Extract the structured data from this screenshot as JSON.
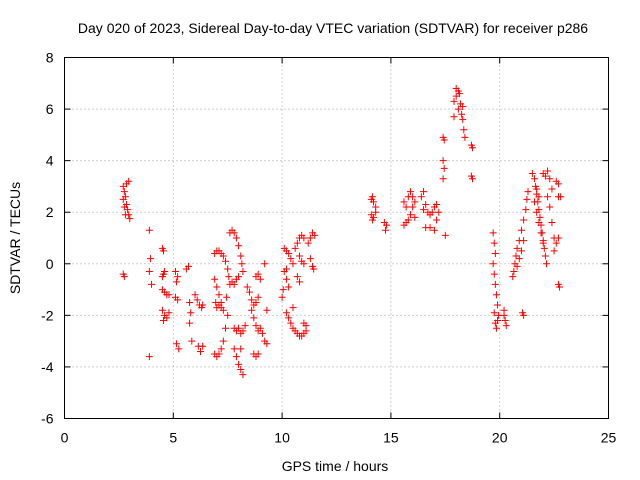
{
  "chart_data": {
    "type": "scatter",
    "title": "Day 020 of 2023, Sidereal Day-to-day VTEC variation (SDTVAR) for receiver p286",
    "xlabel": "GPS time / hours",
    "ylabel": "SDTVAR / TECUs",
    "xlim": [
      0,
      25
    ],
    "ylim": [
      -6,
      8
    ],
    "xticks": [
      0,
      5,
      10,
      15,
      20,
      25
    ],
    "yticks": [
      -6,
      -4,
      -2,
      0,
      2,
      4,
      6,
      8
    ],
    "grid": true,
    "marker": "+",
    "color": "#ff0000",
    "series": [
      {
        "name": "SDTVAR",
        "points": [
          [
            2.7,
            3.0
          ],
          [
            2.75,
            2.8
          ],
          [
            2.8,
            2.6
          ],
          [
            2.85,
            2.3
          ],
          [
            2.9,
            2.1
          ],
          [
            2.95,
            1.9
          ],
          [
            3.0,
            1.75
          ],
          [
            2.75,
            2.2
          ],
          [
            2.85,
            3.1
          ],
          [
            2.95,
            3.2
          ],
          [
            2.7,
            2.5
          ],
          [
            2.8,
            1.9
          ],
          [
            2.7,
            -0.4
          ],
          [
            2.75,
            -0.5
          ],
          [
            3.9,
            1.3
          ],
          [
            3.95,
            0.2
          ],
          [
            3.9,
            -0.3
          ],
          [
            4.0,
            -0.8
          ],
          [
            3.9,
            -3.6
          ],
          [
            4.5,
            0.6
          ],
          [
            4.55,
            0.5
          ],
          [
            4.5,
            -0.5
          ],
          [
            4.55,
            -0.4
          ],
          [
            4.6,
            -0.3
          ],
          [
            4.5,
            -1.0
          ],
          [
            4.6,
            -1.1
          ],
          [
            4.7,
            -1.2
          ],
          [
            4.8,
            -1.2
          ],
          [
            4.5,
            -1.8
          ],
          [
            4.6,
            -2.0
          ],
          [
            4.7,
            -2.1
          ],
          [
            4.55,
            -2.2
          ],
          [
            4.8,
            -1.9
          ],
          [
            5.1,
            -0.3
          ],
          [
            5.2,
            -0.5
          ],
          [
            5.15,
            -0.7
          ],
          [
            5.1,
            -1.3
          ],
          [
            5.2,
            -1.4
          ],
          [
            5.15,
            -3.1
          ],
          [
            5.25,
            -3.3
          ],
          [
            5.6,
            -0.2
          ],
          [
            5.7,
            -0.1
          ],
          [
            5.75,
            -1.5
          ],
          [
            5.8,
            -1.9
          ],
          [
            5.75,
            -2.3
          ],
          [
            5.85,
            -3.0
          ],
          [
            6.0,
            -1.2
          ],
          [
            6.1,
            -1.4
          ],
          [
            6.2,
            -1.6
          ],
          [
            6.3,
            -1.7
          ],
          [
            6.35,
            -1.6
          ],
          [
            6.15,
            -3.2
          ],
          [
            6.25,
            -3.4
          ],
          [
            6.35,
            -3.2
          ],
          [
            6.9,
            0.4
          ],
          [
            7.0,
            0.5
          ],
          [
            7.1,
            0.5
          ],
          [
            7.2,
            0.4
          ],
          [
            7.3,
            0.3
          ],
          [
            7.4,
            0.1
          ],
          [
            6.9,
            -0.6
          ],
          [
            7.0,
            -0.9
          ],
          [
            7.1,
            -1.2
          ],
          [
            7.2,
            -1.5
          ],
          [
            7.3,
            -1.8
          ],
          [
            7.0,
            -1.7
          ],
          [
            7.1,
            -1.6
          ],
          [
            7.2,
            -1.7
          ],
          [
            6.95,
            -1.5
          ],
          [
            6.9,
            -3.5
          ],
          [
            7.0,
            -3.6
          ],
          [
            7.1,
            -3.5
          ],
          [
            7.2,
            -3.3
          ],
          [
            7.3,
            -3.0
          ],
          [
            7.4,
            -2.5
          ],
          [
            7.5,
            -2.0
          ],
          [
            7.5,
            -0.2
          ],
          [
            7.55,
            -0.5
          ],
          [
            7.6,
            -0.8
          ],
          [
            7.45,
            -1.3
          ],
          [
            7.6,
            1.2
          ],
          [
            7.7,
            1.3
          ],
          [
            7.8,
            1.2
          ],
          [
            7.9,
            1.0
          ],
          [
            8.0,
            0.7
          ],
          [
            8.1,
            0.3
          ],
          [
            8.15,
            0.0
          ],
          [
            8.2,
            -0.3
          ],
          [
            8.0,
            -0.5
          ],
          [
            7.9,
            -0.6
          ],
          [
            7.8,
            -0.8
          ],
          [
            7.7,
            -0.7
          ],
          [
            7.8,
            -2.5
          ],
          [
            7.9,
            -2.6
          ],
          [
            8.0,
            -2.5
          ],
          [
            8.1,
            -2.7
          ],
          [
            8.2,
            -2.6
          ],
          [
            8.3,
            -2.4
          ],
          [
            7.8,
            -3.3
          ],
          [
            7.9,
            -3.6
          ],
          [
            8.0,
            -3.9
          ],
          [
            8.1,
            -4.1
          ],
          [
            8.2,
            -4.3
          ],
          [
            8.1,
            -3.3
          ],
          [
            8.4,
            -0.9
          ],
          [
            8.5,
            -1.1
          ],
          [
            8.6,
            -1.4
          ],
          [
            8.7,
            -1.6
          ],
          [
            8.8,
            -1.5
          ],
          [
            8.9,
            -1.3
          ],
          [
            8.6,
            -1.8
          ],
          [
            8.7,
            -2.1
          ],
          [
            8.8,
            -2.4
          ],
          [
            8.9,
            -2.6
          ],
          [
            9.0,
            -2.5
          ],
          [
            8.8,
            -0.5
          ],
          [
            8.9,
            -0.4
          ],
          [
            9.0,
            -0.6
          ],
          [
            8.7,
            -3.5
          ],
          [
            8.8,
            -3.6
          ],
          [
            8.9,
            -3.5
          ],
          [
            9.1,
            -2.7
          ],
          [
            9.2,
            -3.0
          ],
          [
            9.2,
            0.0
          ],
          [
            9.3,
            -1.8
          ],
          [
            9.3,
            -3.1
          ],
          [
            10.1,
            0.6
          ],
          [
            10.2,
            0.5
          ],
          [
            10.3,
            0.4
          ],
          [
            10.4,
            0.2
          ],
          [
            10.5,
            0.0
          ],
          [
            10.1,
            -0.3
          ],
          [
            10.2,
            -0.6
          ],
          [
            10.3,
            -0.9
          ],
          [
            10.2,
            -0.2
          ],
          [
            10.0,
            -1.3
          ],
          [
            10.05,
            -1.0
          ],
          [
            10.6,
            0.6
          ],
          [
            10.7,
            0.8
          ],
          [
            10.8,
            1.0
          ],
          [
            10.9,
            1.1
          ],
          [
            11.0,
            1.0
          ],
          [
            10.8,
            0.3
          ],
          [
            10.9,
            0.1
          ],
          [
            11.0,
            0.0
          ],
          [
            10.7,
            -0.5
          ],
          [
            10.8,
            -0.7
          ],
          [
            11.2,
            0.8
          ],
          [
            11.3,
            1.0
          ],
          [
            11.4,
            1.2
          ],
          [
            11.5,
            1.1
          ],
          [
            11.3,
            0.2
          ],
          [
            11.4,
            -0.1
          ],
          [
            11.45,
            -0.2
          ],
          [
            10.2,
            -1.9
          ],
          [
            10.3,
            -2.1
          ],
          [
            10.4,
            -2.3
          ],
          [
            10.5,
            -2.5
          ],
          [
            10.6,
            -2.6
          ],
          [
            10.7,
            -2.7
          ],
          [
            10.8,
            -2.8
          ],
          [
            10.9,
            -2.8
          ],
          [
            11.0,
            -2.7
          ],
          [
            11.1,
            -2.6
          ],
          [
            10.5,
            -1.7
          ],
          [
            11.0,
            -2.3
          ],
          [
            11.1,
            -2.4
          ],
          [
            14.1,
            2.5
          ],
          [
            14.15,
            2.6
          ],
          [
            14.2,
            2.4
          ],
          [
            14.3,
            2.2
          ],
          [
            14.1,
            1.9
          ],
          [
            14.2,
            1.8
          ],
          [
            14.3,
            2.0
          ],
          [
            14.15,
            1.7
          ],
          [
            14.7,
            1.6
          ],
          [
            14.8,
            1.5
          ],
          [
            14.75,
            1.3
          ],
          [
            15.6,
            1.5
          ],
          [
            15.7,
            1.6
          ],
          [
            15.8,
            1.7
          ],
          [
            15.9,
            1.9
          ],
          [
            16.0,
            2.2
          ],
          [
            16.1,
            2.4
          ],
          [
            15.7,
            2.2
          ],
          [
            15.8,
            2.6
          ],
          [
            15.9,
            2.8
          ],
          [
            16.0,
            2.6
          ],
          [
            15.6,
            2.4
          ],
          [
            16.1,
            1.8
          ],
          [
            16.4,
            2.6
          ],
          [
            16.5,
            2.8
          ],
          [
            16.6,
            2.3
          ],
          [
            16.7,
            2.0
          ],
          [
            16.8,
            1.9
          ],
          [
            16.9,
            2.0
          ],
          [
            17.0,
            2.2
          ],
          [
            17.1,
            2.3
          ],
          [
            17.2,
            2.0
          ],
          [
            16.6,
            1.4
          ],
          [
            16.8,
            1.4
          ],
          [
            17.0,
            1.3
          ],
          [
            17.1,
            1.7
          ],
          [
            16.5,
            2.1
          ],
          [
            17.4,
            4.9
          ],
          [
            17.45,
            4.8
          ],
          [
            17.4,
            4.0
          ],
          [
            17.45,
            3.7
          ],
          [
            17.4,
            3.3
          ],
          [
            17.5,
            1.1
          ],
          [
            17.9,
            6.3
          ],
          [
            18.0,
            6.5
          ],
          [
            18.1,
            6.7
          ],
          [
            18.0,
            6.8
          ],
          [
            18.15,
            6.6
          ],
          [
            18.2,
            6.2
          ],
          [
            18.3,
            5.6
          ],
          [
            18.35,
            5.2
          ],
          [
            18.4,
            4.9
          ],
          [
            18.3,
            6.1
          ],
          [
            18.25,
            5.8
          ],
          [
            17.9,
            5.7
          ],
          [
            18.1,
            6.0
          ],
          [
            18.7,
            4.6
          ],
          [
            18.75,
            4.5
          ],
          [
            18.7,
            3.4
          ],
          [
            18.75,
            3.3
          ],
          [
            19.7,
            1.2
          ],
          [
            19.75,
            0.8
          ],
          [
            19.8,
            0.4
          ],
          [
            19.7,
            0.0
          ],
          [
            19.75,
            -0.4
          ],
          [
            19.8,
            -0.8
          ],
          [
            19.85,
            -1.2
          ],
          [
            19.9,
            -1.6
          ],
          [
            19.95,
            -2.0
          ],
          [
            19.8,
            -2.3
          ],
          [
            19.85,
            -2.5
          ],
          [
            19.9,
            -2.2
          ],
          [
            19.75,
            -1.9
          ],
          [
            20.2,
            -2.0
          ],
          [
            20.25,
            -2.2
          ],
          [
            20.3,
            -2.4
          ],
          [
            20.2,
            -1.8
          ],
          [
            20.6,
            -0.5
          ],
          [
            20.65,
            -0.3
          ],
          [
            20.7,
            0.0
          ],
          [
            20.75,
            0.3
          ],
          [
            20.8,
            0.6
          ],
          [
            20.9,
            0.9
          ],
          [
            21.0,
            1.3
          ],
          [
            21.1,
            1.7
          ],
          [
            21.2,
            2.1
          ],
          [
            21.25,
            2.5
          ],
          [
            21.3,
            2.8
          ],
          [
            20.8,
            -0.1
          ],
          [
            20.9,
            0.2
          ],
          [
            21.0,
            0.5
          ],
          [
            21.1,
            0.9
          ],
          [
            21.05,
            -1.9
          ],
          [
            21.1,
            -2.0
          ],
          [
            21.5,
            3.5
          ],
          [
            21.6,
            3.3
          ],
          [
            21.65,
            3.0
          ],
          [
            21.7,
            2.7
          ],
          [
            21.75,
            2.4
          ],
          [
            21.8,
            2.1
          ],
          [
            21.85,
            1.8
          ],
          [
            21.9,
            1.5
          ],
          [
            21.95,
            1.2
          ],
          [
            22.0,
            0.9
          ],
          [
            22.05,
            0.6
          ],
          [
            22.1,
            0.3
          ],
          [
            22.15,
            0.0
          ],
          [
            21.6,
            2.4
          ],
          [
            21.7,
            2.0
          ],
          [
            21.8,
            1.6
          ],
          [
            21.9,
            1.2
          ],
          [
            22.0,
            0.8
          ],
          [
            21.7,
            2.9
          ],
          [
            21.8,
            2.6
          ],
          [
            22.0,
            3.5
          ],
          [
            22.1,
            3.4
          ],
          [
            22.2,
            3.6
          ],
          [
            22.3,
            3.3
          ],
          [
            22.4,
            2.9
          ],
          [
            22.2,
            2.6
          ],
          [
            22.3,
            2.2
          ],
          [
            22.4,
            1.6
          ],
          [
            22.5,
            1.0
          ],
          [
            22.5,
            0.5
          ],
          [
            22.6,
            0.8
          ],
          [
            22.7,
            1.0
          ],
          [
            22.6,
            3.2
          ],
          [
            22.7,
            3.1
          ],
          [
            22.7,
            2.6
          ],
          [
            22.8,
            2.6
          ],
          [
            22.7,
            -0.8
          ],
          [
            22.75,
            -0.9
          ]
        ]
      }
    ]
  }
}
